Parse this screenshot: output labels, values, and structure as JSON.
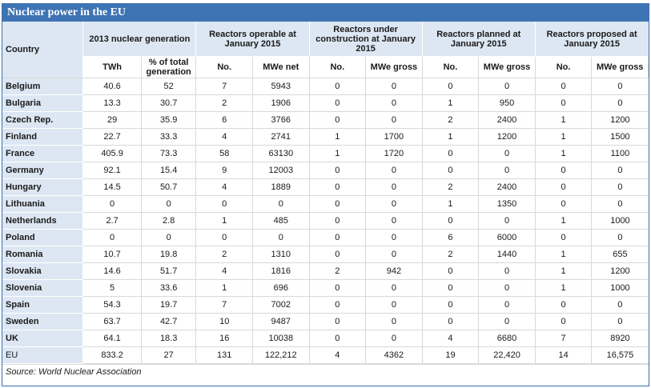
{
  "title": "Nuclear power in the EU",
  "header": {
    "country": "Country",
    "groups": [
      "2013 nuclear generation",
      "Reactors operable at January 2015",
      "Reactors under construction at January 2015",
      "Reactors planned at January 2015",
      "Reactors proposed at January 2015"
    ],
    "sub": [
      "TWh",
      "% of total generation",
      "No.",
      "MWe net",
      "No.",
      "MWe gross",
      "No.",
      "MWe gross",
      "No.",
      "MWe gross"
    ]
  },
  "rows": [
    {
      "country": "Belgium",
      "values": [
        "40.6",
        "52",
        "7",
        "5943",
        "0",
        "0",
        "0",
        "0",
        "0",
        "0"
      ]
    },
    {
      "country": "Bulgaria",
      "values": [
        "13.3",
        "30.7",
        "2",
        "1906",
        "0",
        "0",
        "1",
        "950",
        "0",
        "0"
      ]
    },
    {
      "country": "Czech Rep.",
      "values": [
        "29",
        "35.9",
        "6",
        "3766",
        "0",
        "0",
        "2",
        "2400",
        "1",
        "1200"
      ]
    },
    {
      "country": "Finland",
      "values": [
        "22.7",
        "33.3",
        "4",
        "2741",
        "1",
        "1700",
        "1",
        "1200",
        "1",
        "1500"
      ]
    },
    {
      "country": "France",
      "values": [
        "405.9",
        "73.3",
        "58",
        "63130",
        "1",
        "1720",
        "0",
        "0",
        "1",
        "1100"
      ]
    },
    {
      "country": "Germany",
      "values": [
        "92.1",
        "15.4",
        "9",
        "12003",
        "0",
        "0",
        "0",
        "0",
        "0",
        "0"
      ]
    },
    {
      "country": "Hungary",
      "values": [
        "14.5",
        "50.7",
        "4",
        "1889",
        "0",
        "0",
        "2",
        "2400",
        "0",
        "0"
      ]
    },
    {
      "country": "Lithuania",
      "values": [
        "0",
        "0",
        "0",
        "0",
        "0",
        "0",
        "1",
        "1350",
        "0",
        "0"
      ]
    },
    {
      "country": "Netherlands",
      "values": [
        "2.7",
        "2.8",
        "1",
        "485",
        "0",
        "0",
        "0",
        "0",
        "1",
        "1000"
      ]
    },
    {
      "country": "Poland",
      "values": [
        "0",
        "0",
        "0",
        "0",
        "0",
        "0",
        "6",
        "6000",
        "0",
        "0"
      ]
    },
    {
      "country": "Romania",
      "values": [
        "10.7",
        "19.8",
        "2",
        "1310",
        "0",
        "0",
        "2",
        "1440",
        "1",
        "655"
      ]
    },
    {
      "country": "Slovakia",
      "values": [
        "14.6",
        "51.7",
        "4",
        "1816",
        "2",
        "942",
        "0",
        "0",
        "1",
        "1200"
      ]
    },
    {
      "country": "Slovenia",
      "values": [
        "5",
        "33.6",
        "1",
        "696",
        "0",
        "0",
        "0",
        "0",
        "1",
        "1000"
      ]
    },
    {
      "country": "Spain",
      "values": [
        "54.3",
        "19.7",
        "7",
        "7002",
        "0",
        "0",
        "0",
        "0",
        "0",
        "0"
      ]
    },
    {
      "country": "Sweden",
      "values": [
        "63.7",
        "42.7",
        "10",
        "9487",
        "0",
        "0",
        "0",
        "0",
        "0",
        "0"
      ]
    },
    {
      "country": "UK",
      "values": [
        "64.1",
        "18.3",
        "16",
        "10038",
        "0",
        "0",
        "4",
        "6680",
        "7",
        "8920"
      ]
    },
    {
      "country": "EU",
      "values": [
        "833.2",
        "27",
        "131",
        "122,212",
        "4",
        "4362",
        "19",
        "22,420",
        "14",
        "16,575"
      ]
    }
  ],
  "source": "Source: World Nuclear Association"
}
